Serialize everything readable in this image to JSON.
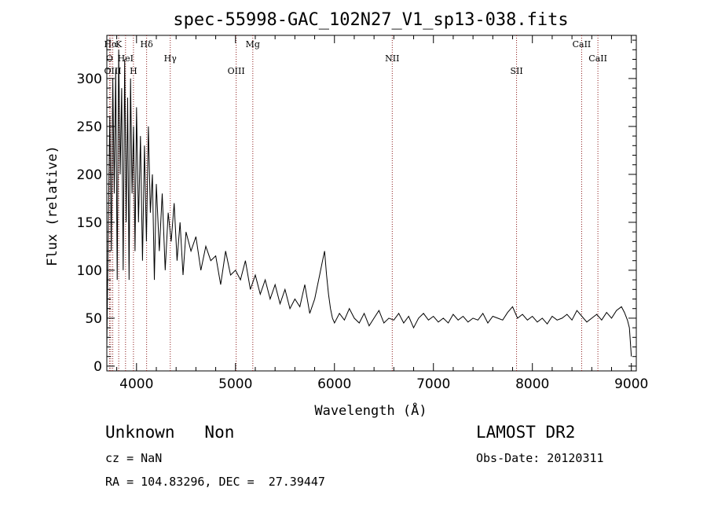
{
  "chart_data": {
    "type": "line",
    "title": "spec-55998-GAC_102N27_V1_sp13-038.fits",
    "xlabel": "Wavelength (Å)",
    "ylabel": "Flux (relative)",
    "xlim": [
      3700,
      9050
    ],
    "ylim": [
      -5,
      345
    ],
    "xticks": [
      4000,
      5000,
      6000,
      7000,
      8000,
      9000
    ],
    "yticks": [
      0,
      50,
      100,
      150,
      200,
      250,
      300
    ],
    "series": [
      {
        "x": [
          3700,
          3715,
          3730,
          3745,
          3760,
          3775,
          3790,
          3805,
          3820,
          3835,
          3850,
          3865,
          3880,
          3895,
          3910,
          3925,
          3940,
          3955,
          3970,
          3985,
          4000,
          4020,
          4040,
          4060,
          4080,
          4100,
          4120,
          4140,
          4160,
          4180,
          4200,
          4230,
          4260,
          4290,
          4320,
          4350,
          4380,
          4410,
          4440,
          4470,
          4500,
          4550,
          4600,
          4650,
          4700,
          4750,
          4800,
          4850,
          4900,
          4950,
          5000,
          5050,
          5100,
          5150,
          5200,
          5250,
          5300,
          5350,
          5400,
          5450,
          5500,
          5550,
          5600,
          5650,
          5700,
          5750,
          5800,
          5850,
          5880,
          5900,
          5920,
          5940,
          5960,
          5980,
          6000,
          6050,
          6100,
          6150,
          6200,
          6250,
          6300,
          6350,
          6400,
          6450,
          6500,
          6550,
          6600,
          6650,
          6700,
          6750,
          6800,
          6850,
          6900,
          6950,
          7000,
          7050,
          7100,
          7150,
          7200,
          7250,
          7300,
          7350,
          7400,
          7450,
          7500,
          7550,
          7600,
          7650,
          7700,
          7750,
          7800,
          7850,
          7900,
          7950,
          8000,
          8050,
          8100,
          8150,
          8200,
          8250,
          8300,
          8350,
          8400,
          8450,
          8500,
          8550,
          8600,
          8650,
          8700,
          8750,
          8800,
          8850,
          8900,
          8930,
          8960,
          8980,
          9000
        ],
        "y": [
          20,
          150,
          260,
          120,
          300,
          180,
          310,
          90,
          330,
          200,
          290,
          100,
          320,
          150,
          280,
          90,
          300,
          180,
          250,
          120,
          270,
          150,
          240,
          110,
          230,
          130,
          250,
          160,
          200,
          90,
          190,
          120,
          180,
          100,
          160,
          130,
          170,
          110,
          150,
          95,
          140,
          120,
          135,
          100,
          125,
          110,
          115,
          85,
          120,
          95,
          100,
          90,
          110,
          80,
          95,
          75,
          90,
          70,
          85,
          65,
          80,
          60,
          70,
          62,
          85,
          55,
          70,
          95,
          110,
          120,
          95,
          75,
          60,
          50,
          45,
          55,
          48,
          60,
          50,
          45,
          55,
          42,
          50,
          58,
          45,
          50,
          48,
          55,
          45,
          52,
          40,
          50,
          55,
          48,
          52,
          46,
          50,
          45,
          54,
          48,
          52,
          46,
          50,
          48,
          55,
          45,
          52,
          50,
          48,
          56,
          62,
          50,
          54,
          48,
          52,
          46,
          50,
          44,
          52,
          48,
          50,
          54,
          48,
          58,
          52,
          46,
          50,
          54,
          48,
          56,
          50,
          58,
          62,
          56,
          48,
          40,
          10
        ]
      }
    ],
    "line_markers": [
      {
        "label": "Hα",
        "x": 3740
      },
      {
        "label": "O",
        "x": 3727
      },
      {
        "label": "OIII",
        "x": 3760
      },
      {
        "label": "K",
        "x": 3820
      },
      {
        "label": "HeI",
        "x": 3889
      },
      {
        "label": "H",
        "x": 3969
      },
      {
        "label": "Hδ",
        "x": 4102
      },
      {
        "label": "Hγ",
        "x": 4341
      },
      {
        "label": "OIII",
        "x": 5007
      },
      {
        "label": "Mg",
        "x": 5175
      },
      {
        "label": "NII",
        "x": 6584
      },
      {
        "label": "SII",
        "x": 7840
      },
      {
        "label": "CaII",
        "x": 8498
      },
      {
        "label": "CaII",
        "x": 8662
      }
    ]
  },
  "info": {
    "class_label": "Unknown   Non",
    "survey": "LAMOST DR2",
    "cz": "cz = NaN",
    "obs_date": "Obs-Date: 20120311",
    "coords": "RA = 104.83296, DEC =  27.39447"
  }
}
